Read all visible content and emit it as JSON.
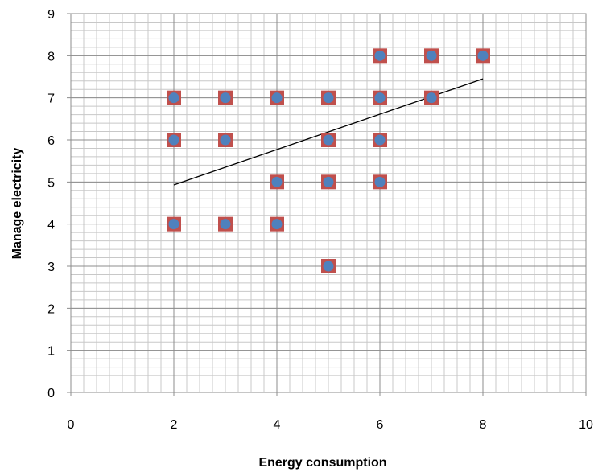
{
  "chart_data": {
    "type": "scatter",
    "title": "",
    "xlabel": "Energy consumption",
    "ylabel": "Manage electricity",
    "xlim": [
      0,
      10
    ],
    "ylim": [
      0,
      9
    ],
    "x_ticks": [
      0,
      2,
      4,
      6,
      8,
      10
    ],
    "y_ticks": [
      0,
      1,
      2,
      3,
      4,
      5,
      6,
      7,
      8,
      9
    ],
    "grid": true,
    "legend": "none",
    "colors": {
      "square_marker": "#c0504d",
      "circle_marker": "#4f81bd",
      "trendline": "#000000",
      "major_grid": "#8c8c8c",
      "minor_grid": "#c8c8c8"
    },
    "points": [
      {
        "x": 2,
        "y": 7
      },
      {
        "x": 2,
        "y": 6
      },
      {
        "x": 2,
        "y": 4
      },
      {
        "x": 3,
        "y": 7
      },
      {
        "x": 3,
        "y": 6
      },
      {
        "x": 3,
        "y": 4
      },
      {
        "x": 4,
        "y": 7
      },
      {
        "x": 4,
        "y": 5
      },
      {
        "x": 4,
        "y": 4
      },
      {
        "x": 5,
        "y": 7
      },
      {
        "x": 5,
        "y": 6
      },
      {
        "x": 5,
        "y": 5
      },
      {
        "x": 5,
        "y": 3
      },
      {
        "x": 6,
        "y": 8
      },
      {
        "x": 6,
        "y": 7
      },
      {
        "x": 6,
        "y": 6
      },
      {
        "x": 6,
        "y": 5
      },
      {
        "x": 7,
        "y": 8
      },
      {
        "x": 7,
        "y": 7
      },
      {
        "x": 8,
        "y": 8
      }
    ],
    "trendline": {
      "x": [
        2,
        8
      ],
      "y": [
        4.93,
        7.45
      ]
    }
  }
}
